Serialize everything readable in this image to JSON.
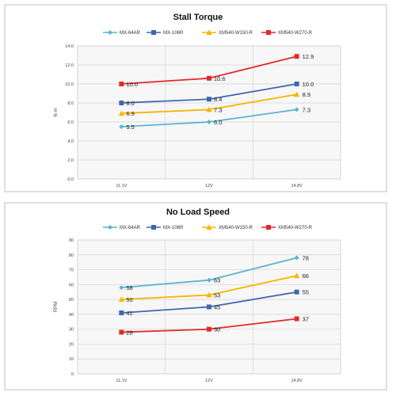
{
  "chart_data": [
    {
      "type": "line",
      "title": "Stall Torque",
      "ylabel": "N·m",
      "xlabel": "",
      "categories": [
        "11.1V",
        "12V",
        "14.8V"
      ],
      "ylim": [
        0,
        14
      ],
      "yticks": [
        "0.0",
        "2.0",
        "4.0",
        "6.0",
        "8.0",
        "10.0",
        "12.0",
        "14.0"
      ],
      "grid": true,
      "legend": "top",
      "series": [
        {
          "name": "MX-64AR",
          "color": "#5ab4cf",
          "marker": "diamond",
          "values": [
            5.5,
            6.0,
            7.3
          ],
          "labels": [
            "5.5",
            "6.0",
            "7.3"
          ]
        },
        {
          "name": "MX-106R",
          "color": "#3f67b0",
          "marker": "square",
          "values": [
            8.0,
            8.4,
            10.0
          ],
          "labels": [
            "8.0",
            "8.4",
            "10.0"
          ]
        },
        {
          "name": "XM540-W150-R",
          "color": "#f7b500",
          "marker": "triangle",
          "values": [
            6.9,
            7.3,
            8.9
          ],
          "labels": [
            "6.9",
            "7.3",
            "8.9"
          ]
        },
        {
          "name": "XM540-W270-R",
          "color": "#e02a2a",
          "marker": "square",
          "values": [
            10.0,
            10.6,
            12.9
          ],
          "labels": [
            "10.0",
            "10.6",
            "12.9"
          ]
        }
      ]
    },
    {
      "type": "line",
      "title": "No Load Speed",
      "ylabel": "RPM",
      "xlabel": "",
      "categories": [
        "11.1V",
        "12V",
        "14.8V"
      ],
      "ylim": [
        0,
        90
      ],
      "yticks": [
        "0",
        "10",
        "20",
        "30",
        "40",
        "50",
        "60",
        "70",
        "80",
        "90"
      ],
      "grid": true,
      "legend": "top",
      "series": [
        {
          "name": "MX-64AR",
          "color": "#5ab4cf",
          "marker": "diamond",
          "values": [
            58,
            63,
            78
          ],
          "labels": [
            "58",
            "63",
            "78"
          ]
        },
        {
          "name": "MX-106R",
          "color": "#3f67b0",
          "marker": "square",
          "values": [
            41,
            45,
            55
          ],
          "labels": [
            "41",
            "45",
            "55"
          ]
        },
        {
          "name": "XM540-W150-R",
          "color": "#f7b500",
          "marker": "triangle",
          "values": [
            50,
            53,
            66
          ],
          "labels": [
            "50",
            "53",
            "66"
          ]
        },
        {
          "name": "XM540-W270-R",
          "color": "#e02a2a",
          "marker": "square",
          "values": [
            28,
            30,
            37
          ],
          "labels": [
            "28",
            "30",
            "37"
          ]
        }
      ]
    }
  ]
}
